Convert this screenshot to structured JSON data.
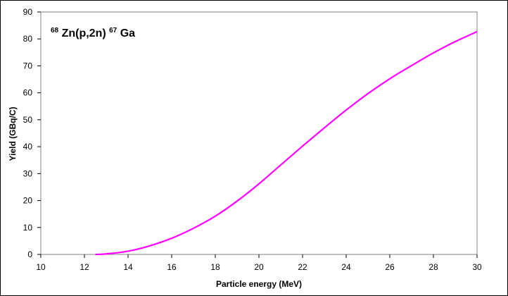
{
  "chart_data": {
    "type": "line",
    "title_parts": {
      "mass_a": "68",
      "target": "Zn(p,2n)",
      "mass_b": "67",
      "product": "Ga"
    },
    "xlabel": "Particle energy (MeV)",
    "ylabel": "Yield (GBq/C)",
    "xlim": [
      10,
      30
    ],
    "ylim": [
      0,
      90
    ],
    "xticks": [
      10,
      12,
      14,
      16,
      18,
      20,
      22,
      24,
      26,
      28,
      30
    ],
    "yticks": [
      0,
      10,
      20,
      30,
      40,
      50,
      60,
      70,
      80,
      90
    ],
    "grid": false,
    "series": [
      {
        "color": "#ff00ff",
        "x": [
          12.5,
          13,
          14,
          15,
          16,
          17,
          18,
          19,
          20,
          21,
          22,
          23,
          24,
          25,
          26,
          27,
          28,
          29,
          30
        ],
        "y": [
          0,
          0.2,
          1.2,
          3.2,
          6.0,
          9.7,
          14.2,
          19.8,
          26.2,
          33.2,
          40.2,
          47.0,
          53.6,
          59.7,
          65.2,
          70.1,
          74.8,
          79.0,
          82.7
        ]
      }
    ]
  }
}
